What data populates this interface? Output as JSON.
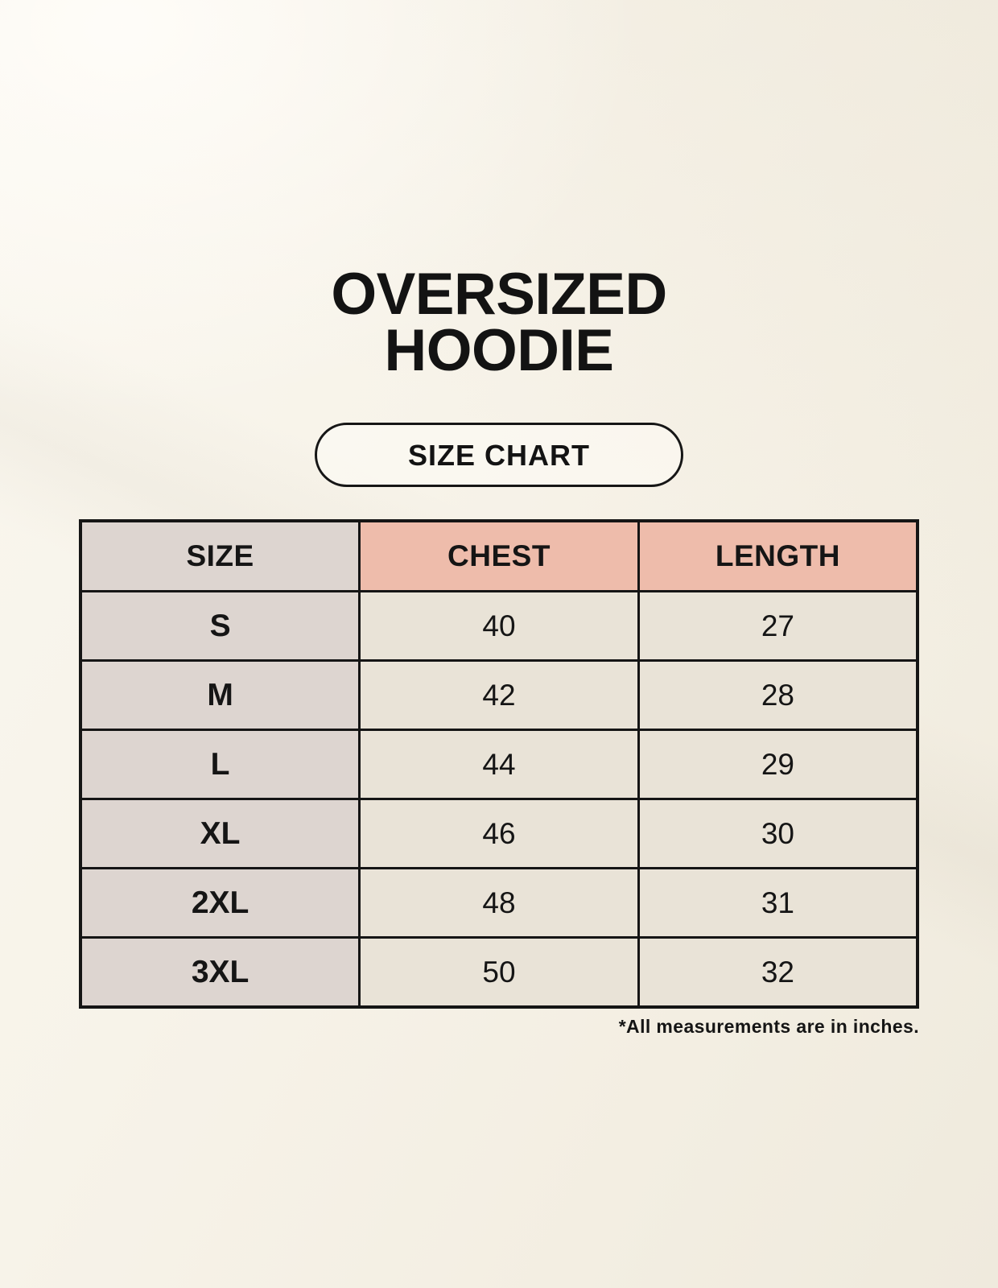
{
  "page": {
    "title_line1": "OVERSIZED",
    "title_line2": "HOODIE",
    "badge_label": "SIZE CHART",
    "footnote": "*All measurements are in inches."
  },
  "chart_data": {
    "type": "table",
    "title": "OVERSIZED HOODIE SIZE CHART",
    "columns": [
      "SIZE",
      "CHEST",
      "LENGTH"
    ],
    "rows": [
      [
        "S",
        "40",
        "27"
      ],
      [
        "M",
        "42",
        "28"
      ],
      [
        "L",
        "44",
        "29"
      ],
      [
        "XL",
        "46",
        "30"
      ],
      [
        "2XL",
        "48",
        "31"
      ],
      [
        "3XL",
        "50",
        "32"
      ]
    ],
    "units": "inches"
  },
  "colors": {
    "background": "#f7f3e9",
    "header_size_bg": "#ddd5d0",
    "header_measure_bg": "#eebcab",
    "size_column_bg": "#ddd5d0",
    "value_cell_bg": "#e9e3d7",
    "border": "#151515",
    "text": "#151515"
  }
}
